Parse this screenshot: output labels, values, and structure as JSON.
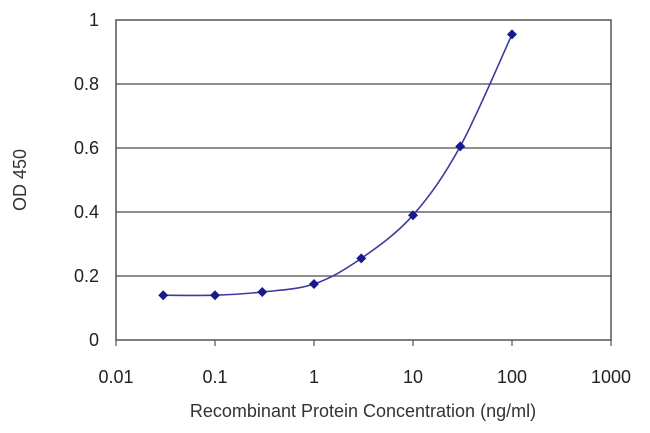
{
  "chart_data": {
    "type": "line",
    "xlabel": "Recombinant Protein Concentration (ng/ml)",
    "ylabel": "OD 450",
    "x_scale": "log",
    "xlim": [
      0.01,
      1000
    ],
    "ylim": [
      0,
      1
    ],
    "x_ticks": [
      0.01,
      0.1,
      1,
      10,
      100,
      1000
    ],
    "x_tick_labels": [
      "0.01",
      "0.1",
      "1",
      "10",
      "100",
      "1000"
    ],
    "y_ticks": [
      0,
      0.2,
      0.4,
      0.6,
      0.8,
      1
    ],
    "y_tick_labels": [
      "0",
      "0.2",
      "0.4",
      "0.6",
      "0.8",
      "1"
    ],
    "grid": "horizontal",
    "legend": "none",
    "series": [
      {
        "x": [
          0.03,
          0.1,
          0.3,
          1,
          3,
          10,
          30,
          100
        ],
        "y": [
          0.14,
          0.14,
          0.15,
          0.175,
          0.255,
          0.39,
          0.605,
          0.955
        ],
        "color": "#3c3c9a",
        "marker_color": "#1a1a8c",
        "marker": "diamond"
      }
    ]
  }
}
